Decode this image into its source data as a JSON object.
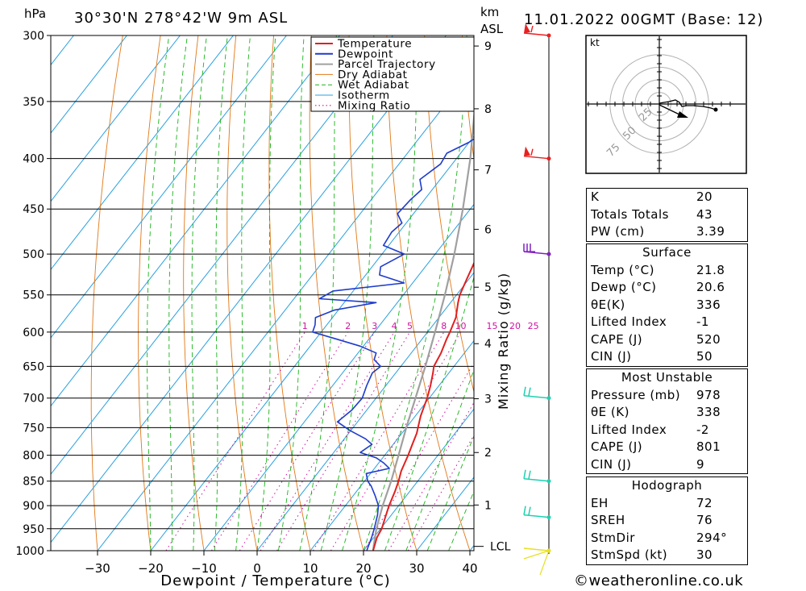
{
  "header": {
    "location": "30°30'N 278°42'W 9m ASL",
    "datetime": "11.01.2022 00GMT (Base: 12)",
    "p_unit": "hPa",
    "km_unit": "km",
    "asl": "ASL"
  },
  "legend": [
    "Temperature",
    "Dewpoint",
    "Parcel Trajectory",
    "Dry Adiabat",
    "Wet Adiabat",
    "Isotherm",
    "Mixing Ratio"
  ],
  "colors": {
    "temperature": "#e02020",
    "dewpoint": "#1e3ccc",
    "parcel": "#a0a0a0",
    "dry_adiabat": "#e07818",
    "wet_adiabat": "#18b418",
    "isotherm": "#28a0e0",
    "mixing_ratio": "#d010a0"
  },
  "chart_data": {
    "type": "line",
    "xlabel": "Dewpoint / Temperature (°C)",
    "ylabel": "Mixing Ratio (g/kg)",
    "x_ticks": [
      -30,
      -20,
      -10,
      0,
      10,
      20,
      30,
      40
    ],
    "pressure_levels": [
      300,
      350,
      400,
      450,
      500,
      550,
      600,
      650,
      700,
      750,
      800,
      850,
      900,
      950,
      1000
    ],
    "km_ticks": [
      "1",
      "2",
      "3",
      "4",
      "5",
      "6",
      "7",
      "8",
      "9"
    ],
    "lcl_label": "LCL",
    "mixing_ratio_labels": [
      "1",
      "2",
      "3",
      "4",
      "5",
      "8",
      "10",
      "15",
      "20",
      "25"
    ],
    "series": [
      {
        "name": "Temperature",
        "points": [
          [
            1000,
            21.8
          ],
          [
            970,
            20.6
          ],
          [
            950,
            20.2
          ],
          [
            930,
            19.4
          ],
          [
            900,
            18.2
          ],
          [
            870,
            17.2
          ],
          [
            850,
            16.4
          ],
          [
            830,
            15.4
          ],
          [
            800,
            14.4
          ],
          [
            780,
            13.6
          ],
          [
            760,
            12.8
          ],
          [
            750,
            12.2
          ],
          [
            730,
            11.0
          ],
          [
            700,
            9.6
          ],
          [
            680,
            8.4
          ],
          [
            660,
            7.0
          ],
          [
            650,
            6.2
          ],
          [
            630,
            5.6
          ],
          [
            610,
            4.6
          ],
          [
            600,
            4.2
          ],
          [
            580,
            3.2
          ],
          [
            560,
            1.4
          ],
          [
            550,
            0.6
          ],
          [
            530,
            -0.4
          ],
          [
            510,
            -1.4
          ],
          [
            500,
            -2.2
          ],
          [
            480,
            -4.4
          ],
          [
            460,
            -5.8
          ],
          [
            450,
            -6.8
          ],
          [
            430,
            -8.4
          ],
          [
            410,
            -10.4
          ],
          [
            400,
            -11.6
          ],
          [
            380,
            -13.8
          ],
          [
            360,
            -16.4
          ],
          [
            350,
            -17.6
          ],
          [
            330,
            -20.6
          ],
          [
            310,
            -23.6
          ],
          [
            300,
            -25.0
          ]
        ]
      },
      {
        "name": "Dewpoint",
        "points": [
          [
            1000,
            20.6
          ],
          [
            970,
            19.6
          ],
          [
            950,
            18.8
          ],
          [
            920,
            17.4
          ],
          [
            900,
            16.2
          ],
          [
            880,
            14.2
          ],
          [
            860,
            12.0
          ],
          [
            850,
            10.6
          ],
          [
            835,
            9.2
          ],
          [
            825,
            12.8
          ],
          [
            815,
            11.0
          ],
          [
            805,
            8.8
          ],
          [
            795,
            5.0
          ],
          [
            780,
            6.0
          ],
          [
            770,
            4.0
          ],
          [
            755,
            -0.2
          ],
          [
            740,
            -3.8
          ],
          [
            720,
            -2.8
          ],
          [
            700,
            -2.6
          ],
          [
            680,
            -3.6
          ],
          [
            660,
            -4.4
          ],
          [
            650,
            -3.8
          ],
          [
            640,
            -6.0
          ],
          [
            630,
            -6.6
          ],
          [
            620,
            -10.6
          ],
          [
            610,
            -16.0
          ],
          [
            600,
            -21.6
          ],
          [
            590,
            -22.2
          ],
          [
            580,
            -23.2
          ],
          [
            570,
            -20.8
          ],
          [
            560,
            -14.0
          ],
          [
            555,
            -25.2
          ],
          [
            545,
            -23.8
          ],
          [
            535,
            -11.6
          ],
          [
            525,
            -17.4
          ],
          [
            515,
            -18.4
          ],
          [
            500,
            -15.8
          ],
          [
            490,
            -21.0
          ],
          [
            475,
            -21.4
          ],
          [
            465,
            -20.8
          ],
          [
            455,
            -23.0
          ],
          [
            440,
            -22.6
          ],
          [
            430,
            -22.0
          ],
          [
            420,
            -23.8
          ],
          [
            405,
            -22.2
          ],
          [
            395,
            -22.6
          ],
          [
            385,
            -20.0
          ],
          [
            375,
            -18.6
          ],
          [
            365,
            -19.0
          ],
          [
            350,
            -19.4
          ],
          [
            340,
            -19.0
          ],
          [
            330,
            -19.2
          ],
          [
            315,
            -17.4
          ],
          [
            300,
            -14.2
          ]
        ]
      },
      {
        "name": "Parcel Trajectory",
        "points": [
          [
            1000,
            21.8
          ],
          [
            985,
            21.0
          ],
          [
            950,
            19.2
          ],
          [
            900,
            17.0
          ],
          [
            850,
            15.0
          ],
          [
            800,
            12.6
          ],
          [
            750,
            10.0
          ],
          [
            700,
            7.4
          ],
          [
            650,
            4.6
          ],
          [
            600,
            1.4
          ],
          [
            550,
            -2.2
          ],
          [
            500,
            -6.4
          ],
          [
            450,
            -11.4
          ],
          [
            400,
            -17.4
          ],
          [
            350,
            -24.8
          ],
          [
            300,
            -33.4
          ]
        ]
      }
    ],
    "wind_barbs": [
      {
        "p": 300,
        "color": "red"
      },
      {
        "p": 400,
        "color": "red"
      },
      {
        "p": 500,
        "color": "purple"
      },
      {
        "p": 700,
        "color": "cyan"
      },
      {
        "p": 850,
        "color": "cyan"
      },
      {
        "p": 925,
        "color": "cyan"
      },
      {
        "p": 1000,
        "color": "yellow"
      }
    ],
    "hodograph": {
      "unit": "kt",
      "ring_labels": [
        "25",
        "50",
        "75"
      ]
    }
  },
  "indices": {
    "top": [
      {
        "label": "K",
        "value": "20"
      },
      {
        "label": "Totals Totals",
        "value": "43"
      },
      {
        "label": "PW (cm)",
        "value": "3.39"
      }
    ],
    "surface_title": "Surface",
    "surface": [
      {
        "label": "Temp (°C)",
        "value": "21.8"
      },
      {
        "label": "Dewp (°C)",
        "value": "20.6"
      },
      {
        "label": "θE(K)",
        "value": "336"
      },
      {
        "label": "Lifted Index",
        "value": "-1"
      },
      {
        "label": "CAPE (J)",
        "value": "520"
      },
      {
        "label": "CIN (J)",
        "value": "50"
      }
    ],
    "mu_title": "Most Unstable",
    "mu": [
      {
        "label": "Pressure (mb)",
        "value": "978"
      },
      {
        "label": "θE (K)",
        "value": "338"
      },
      {
        "label": "Lifted Index",
        "value": "-2"
      },
      {
        "label": "CAPE (J)",
        "value": "801"
      },
      {
        "label": "CIN (J)",
        "value": "9"
      }
    ],
    "hodo_title": "Hodograph",
    "hodo": [
      {
        "label": "EH",
        "value": "72"
      },
      {
        "label": "SREH",
        "value": "76"
      },
      {
        "label": "StmDir",
        "value": "294°"
      },
      {
        "label": "StmSpd (kt)",
        "value": "30"
      }
    ]
  },
  "footer": {
    "copyright": "©weatheronline.co.uk"
  }
}
